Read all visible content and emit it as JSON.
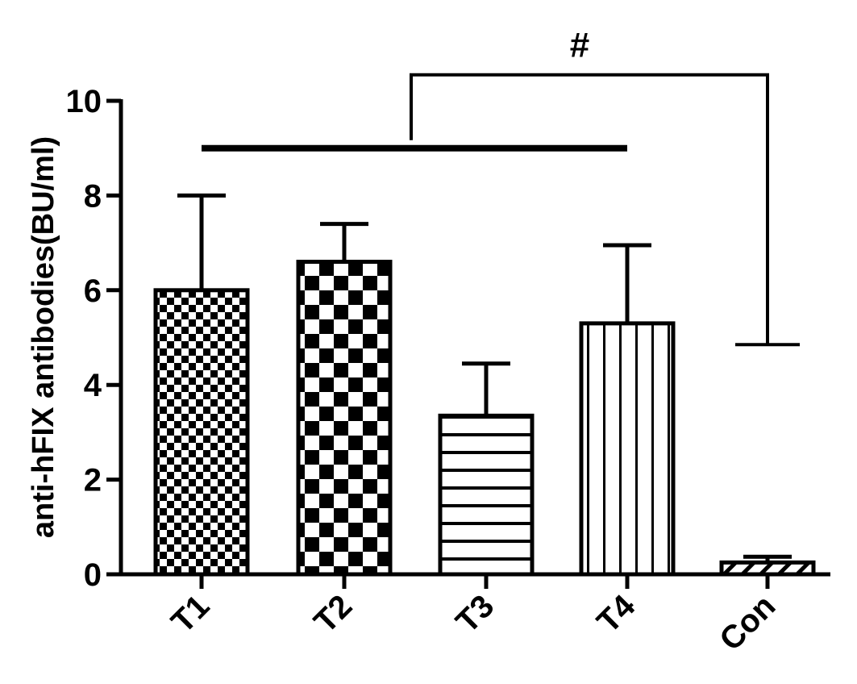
{
  "chart_data": {
    "type": "bar",
    "title": "",
    "xlabel": "",
    "ylabel": "anti-hFIX antibodies(BU/ml)",
    "ylim": [
      0,
      10
    ],
    "yticks": [
      0,
      2,
      4,
      6,
      8,
      10
    ],
    "categories": [
      "T1",
      "T2",
      "T3",
      "T4",
      "Con"
    ],
    "values": [
      6.0,
      6.6,
      3.35,
      5.3,
      0.25
    ],
    "errors": [
      2.0,
      0.8,
      1.1,
      1.65,
      0.12
    ],
    "patterns": [
      "fine-checker",
      "coarse-checker",
      "horizontal-lines",
      "vertical-lines",
      "diagonal-lines"
    ],
    "grid": false,
    "legend": "none",
    "annotations": {
      "significance_mark": "#",
      "bracket_group": [
        "T1",
        "T2",
        "T3",
        "T4"
      ],
      "bracket_compare": "Con"
    }
  }
}
